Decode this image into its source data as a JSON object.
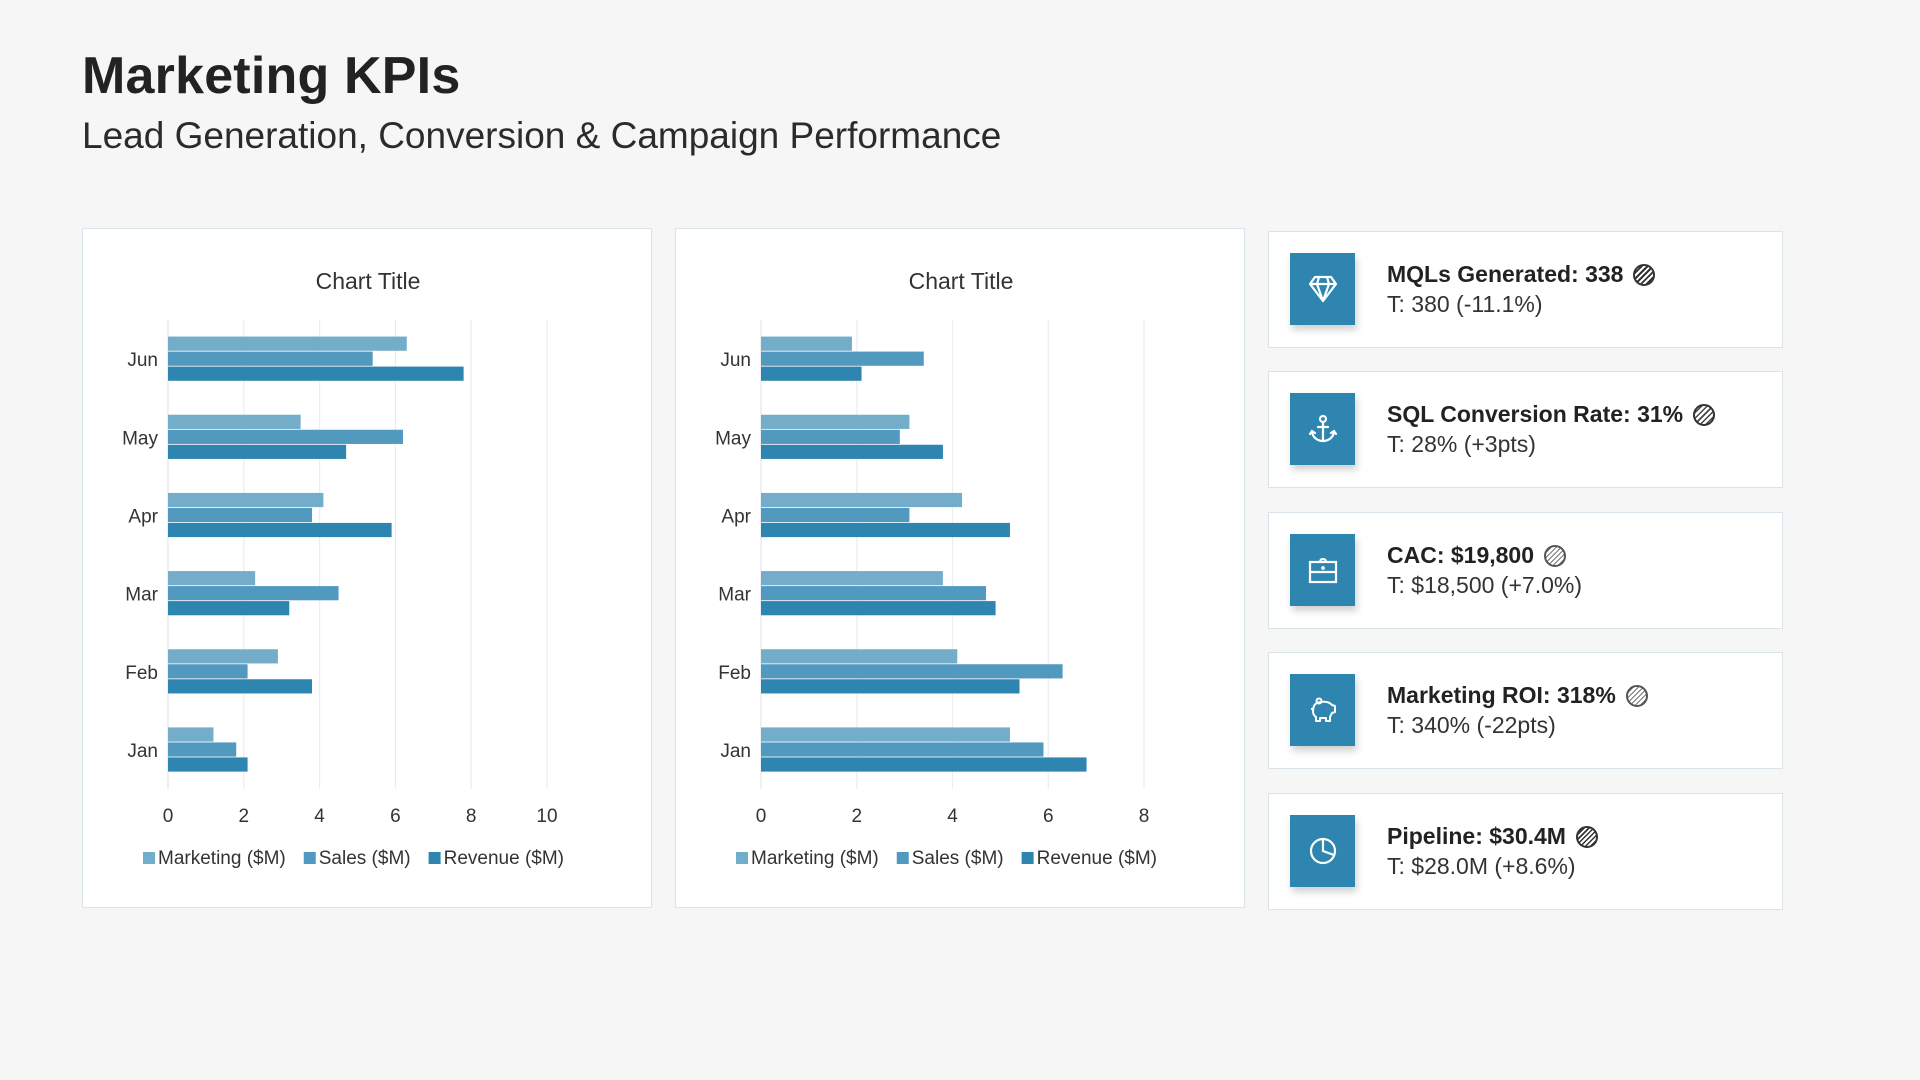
{
  "header": {
    "title": "Marketing KPIs",
    "subtitle": "Lead Generation, Conversion & Campaign Performance"
  },
  "colors": {
    "marketing": "#74adca",
    "sales": "#5199bf",
    "revenue": "#2e86b0",
    "icon_bg": "#2e86b0"
  },
  "chart_data": [
    {
      "type": "bar",
      "orientation": "horizontal",
      "title": "Chart Title",
      "categories": [
        "Jan",
        "Feb",
        "Mar",
        "Apr",
        "May",
        "Jun"
      ],
      "series": [
        {
          "name": "Marketing ($M)",
          "values": [
            1.2,
            2.9,
            2.3,
            4.1,
            3.5,
            6.3
          ]
        },
        {
          "name": "Sales ($M)",
          "values": [
            1.8,
            2.1,
            4.5,
            3.8,
            6.2,
            5.4
          ]
        },
        {
          "name": "Revenue ($M)",
          "values": [
            2.1,
            3.8,
            3.2,
            5.9,
            4.7,
            7.8
          ]
        }
      ],
      "xlim": [
        0,
        10
      ],
      "xticks": [
        "0",
        "2",
        "4",
        "6",
        "8",
        "10"
      ],
      "xlabel": "",
      "ylabel": "",
      "grid": true,
      "legend": "bottom"
    },
    {
      "type": "bar",
      "orientation": "horizontal",
      "title": "Chart Title",
      "categories": [
        "Jan",
        "Feb",
        "Mar",
        "Apr",
        "May",
        "Jun"
      ],
      "series": [
        {
          "name": "Marketing ($M)",
          "values": [
            5.2,
            4.1,
            3.8,
            4.2,
            3.1,
            1.9
          ]
        },
        {
          "name": "Sales ($M)",
          "values": [
            5.9,
            6.3,
            4.7,
            3.1,
            2.9,
            3.4
          ]
        },
        {
          "name": "Revenue ($M)",
          "values": [
            6.8,
            5.4,
            4.9,
            5.2,
            3.8,
            2.1
          ]
        }
      ],
      "xlim": [
        0,
        8
      ],
      "xticks": [
        "0",
        "2",
        "4",
        "6",
        "8"
      ],
      "xlabel": "",
      "ylabel": "",
      "grid": true,
      "legend": "bottom"
    }
  ],
  "kpis": [
    {
      "icon": "diamond-icon",
      "title": "MQLs Generated: 338",
      "target": "T: 380 (-11.1%)",
      "status": "dense-hatch"
    },
    {
      "icon": "anchor-icon",
      "title": "SQL Conversion Rate: 31%",
      "target": "T: 28% (+3pts)",
      "status": "medium-hatch"
    },
    {
      "icon": "briefcase-icon",
      "title": "CAC: $19,800",
      "target": "T: $18,500 (+7.0%)",
      "status": "light-hatch"
    },
    {
      "icon": "piggy-bank-icon",
      "title": "Marketing ROI: 318%",
      "target": "T: 340% (-22pts)",
      "status": "light-hatch"
    },
    {
      "icon": "pie-chart-icon",
      "title": "Pipeline: $30.4M",
      "target": "T: $28.0M (+8.6%)",
      "status": "medium-hatch"
    }
  ]
}
